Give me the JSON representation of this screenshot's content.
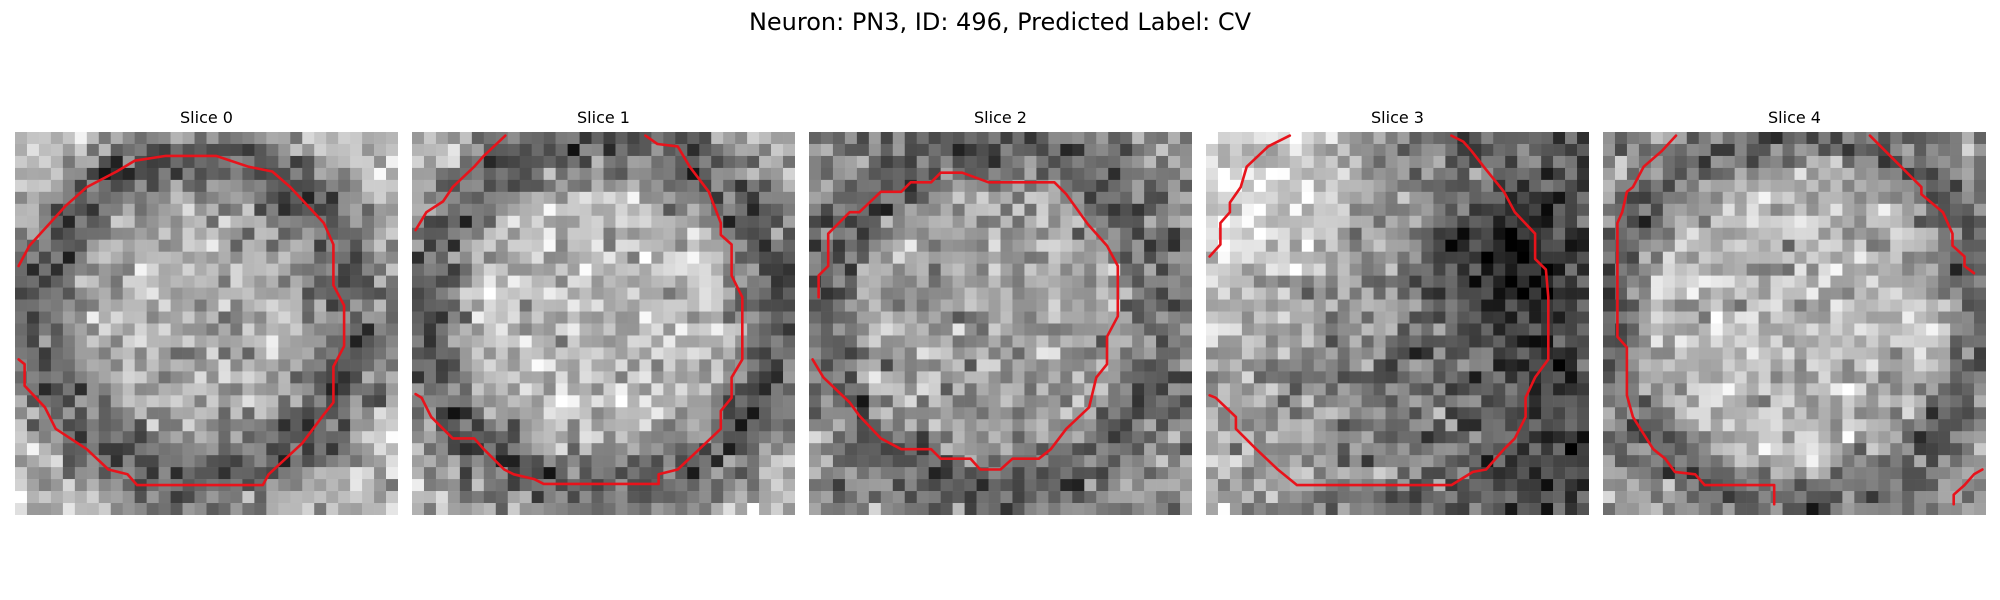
{
  "figure": {
    "title": "Neuron: PN3, ID: 496, Predicted Label: CV"
  },
  "panels": [
    {
      "title": "Slice 0"
    },
    {
      "title": "Slice 1"
    },
    {
      "title": "Slice 2"
    },
    {
      "title": "Slice 3"
    },
    {
      "title": "Slice 4"
    }
  ],
  "colors": {
    "contour": "#e8131b",
    "background": "#ffffff"
  }
}
